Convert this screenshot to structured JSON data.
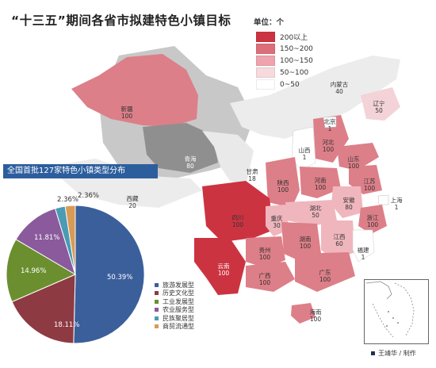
{
  "title": "“十三五”期间各省市拟建特色小镇目标",
  "legend": {
    "unit_label": "单位：个",
    "items": [
      {
        "label": "200以上",
        "color": "#cc3340"
      },
      {
        "label": "150~200",
        "color": "#dc6e7a"
      },
      {
        "label": "100~150",
        "color": "#eea3ad"
      },
      {
        "label": "50~100",
        "color": "#f7dade"
      },
      {
        "label": "0~50",
        "color": "#ffffff"
      }
    ]
  },
  "provinces": [
    {
      "name": "新疆",
      "value": "100"
    },
    {
      "name": "青海",
      "value": "80"
    },
    {
      "name": "西藏",
      "value": "20"
    },
    {
      "name": "甘肃",
      "value": "18"
    },
    {
      "name": "内蒙古",
      "value": "40"
    },
    {
      "name": "辽宁",
      "value": "50"
    },
    {
      "name": "北京",
      "value": "1"
    },
    {
      "name": "河北",
      "value": "100"
    },
    {
      "name": "山西",
      "value": "1"
    },
    {
      "name": "山东",
      "value": "100"
    },
    {
      "name": "陕西",
      "value": "100"
    },
    {
      "name": "河南",
      "value": "100"
    },
    {
      "name": "江苏",
      "value": "100"
    },
    {
      "name": "安徽",
      "value": "80"
    },
    {
      "name": "上海",
      "value": "1"
    },
    {
      "name": "湖北",
      "value": "50"
    },
    {
      "name": "浙江",
      "value": "100"
    },
    {
      "name": "四川",
      "value": "100"
    },
    {
      "name": "重庆",
      "value": "30"
    },
    {
      "name": "贵州",
      "value": "100"
    },
    {
      "name": "湖南",
      "value": "100"
    },
    {
      "name": "江西",
      "value": "60"
    },
    {
      "name": "福建",
      "value": "1"
    },
    {
      "name": "云南",
      "value": "100"
    },
    {
      "name": "广西",
      "value": "100"
    },
    {
      "name": "广东",
      "value": "100"
    },
    {
      "name": "海南",
      "value": "100"
    }
  ],
  "pie": {
    "title": "全国首批127家特色小镇类型分布"
  },
  "chart_data": {
    "type": "pie",
    "title": "全国首批127家特色小镇类型分布",
    "categories": [
      "旅游发展型",
      "历史文化型",
      "工业发展型",
      "农业服务型",
      "民族聚居型",
      "商贸流通型"
    ],
    "values": [
      50.39,
      18.11,
      14.96,
      11.81,
      2.36,
      2.36
    ],
    "value_labels": [
      "50.39%",
      "18.11%",
      "14.96%",
      "11.81%",
      "2.36%",
      "2.36%"
    ],
    "colors": [
      "#3a5f9b",
      "#8e3a42",
      "#6b8f2f",
      "#8a5a9c",
      "#4a9bb3",
      "#d99a55"
    ],
    "legend_position": "right"
  },
  "credit": "王靖华 / 制作"
}
